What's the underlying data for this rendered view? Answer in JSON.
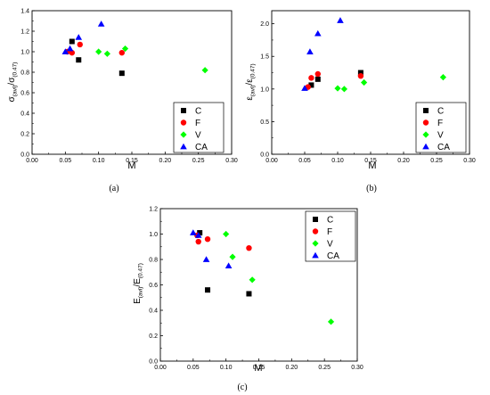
{
  "chart_data": [
    {
      "type": "scatter",
      "caption": "(a)",
      "xlabel": "M",
      "ylabel_main": "σ",
      "ylabel_sub1": "(avi)",
      "ylabel_mid": "/σ",
      "ylabel_sub2": "(0.47)",
      "xlim": [
        0,
        0.3
      ],
      "ylim": [
        0,
        1.4
      ],
      "xticks": [
        "0.00",
        "0.05",
        "0.10",
        "0.15",
        "0.20",
        "0.25",
        "0.30"
      ],
      "yticks": [
        "0.0",
        "0.2",
        "0.4",
        "0.6",
        "0.8",
        "1.0",
        "1.2",
        "1.4"
      ],
      "legend_position": "bottom-right",
      "series": [
        {
          "name": "C",
          "marker": "square",
          "color": "#000000",
          "x": [
            0.06,
            0.07,
            0.135
          ],
          "y": [
            1.1,
            0.92,
            0.79
          ]
        },
        {
          "name": "F",
          "marker": "circle",
          "color": "#ff0000",
          "x": [
            0.053,
            0.06,
            0.072,
            0.135
          ],
          "y": [
            1.0,
            0.99,
            1.07,
            0.99
          ]
        },
        {
          "name": "V",
          "marker": "diamond",
          "color": "#00ff00",
          "x": [
            0.1,
            0.113,
            0.14,
            0.26
          ],
          "y": [
            1.0,
            0.98,
            1.03,
            0.82
          ]
        },
        {
          "name": "CA",
          "marker": "triangle",
          "color": "#0000ff",
          "x": [
            0.05,
            0.057,
            0.07,
            0.104
          ],
          "y": [
            1.0,
            1.03,
            1.14,
            1.27
          ]
        }
      ]
    },
    {
      "type": "scatter",
      "caption": "(b)",
      "xlabel": "M",
      "ylabel_main": "ε",
      "ylabel_sub1": "(avi)",
      "ylabel_mid": "/ε",
      "ylabel_sub2": "(0.47)",
      "xlim": [
        0,
        0.3
      ],
      "ylim": [
        0,
        2.2
      ],
      "xticks": [
        "0.00",
        "0.05",
        "0.10",
        "0.15",
        "0.20",
        "0.25",
        "0.30"
      ],
      "yticks": [
        "0.0",
        "0.5",
        "1.0",
        "1.5",
        "2.0"
      ],
      "ytick_values": [
        0,
        0.5,
        1.0,
        1.5,
        2.0
      ],
      "legend_position": "bottom-right",
      "series": [
        {
          "name": "C",
          "marker": "square",
          "color": "#000000",
          "x": [
            0.06,
            0.07,
            0.135
          ],
          "y": [
            1.06,
            1.15,
            1.25
          ]
        },
        {
          "name": "F",
          "marker": "circle",
          "color": "#ff0000",
          "x": [
            0.055,
            0.06,
            0.07,
            0.135
          ],
          "y": [
            1.03,
            1.17,
            1.23,
            1.2
          ]
        },
        {
          "name": "V",
          "marker": "diamond",
          "color": "#00ff00",
          "x": [
            0.1,
            0.11,
            0.14,
            0.26
          ],
          "y": [
            1.01,
            1.0,
            1.1,
            1.18
          ]
        },
        {
          "name": "CA",
          "marker": "triangle",
          "color": "#0000ff",
          "x": [
            0.05,
            0.058,
            0.07,
            0.104
          ],
          "y": [
            1.01,
            1.57,
            1.85,
            2.05
          ]
        }
      ]
    },
    {
      "type": "scatter",
      "caption": "(c)",
      "xlabel": "M",
      "ylabel_main": "E",
      "ylabel_sub1": "(avi)",
      "ylabel_mid": "/E",
      "ylabel_sub2": "(0.47)",
      "xlim": [
        0,
        0.3
      ],
      "ylim": [
        0,
        1.2
      ],
      "xticks": [
        "0.00",
        "0.05",
        "0.10",
        "0.15",
        "0.20",
        "0.25",
        "0.30"
      ],
      "yticks": [
        "0.0",
        "0.2",
        "0.4",
        "0.6",
        "0.8",
        "1.0",
        "1.2"
      ],
      "legend_position": "top-right",
      "series": [
        {
          "name": "C",
          "marker": "square",
          "color": "#000000",
          "x": [
            0.06,
            0.072,
            0.135
          ],
          "y": [
            1.01,
            0.56,
            0.53
          ]
        },
        {
          "name": "F",
          "marker": "circle",
          "color": "#ff0000",
          "x": [
            0.056,
            0.058,
            0.072,
            0.135
          ],
          "y": [
            0.99,
            0.94,
            0.96,
            0.89
          ]
        },
        {
          "name": "V",
          "marker": "diamond",
          "color": "#00ff00",
          "x": [
            0.1,
            0.11,
            0.14,
            0.26
          ],
          "y": [
            1.0,
            0.82,
            0.64,
            0.31
          ]
        },
        {
          "name": "CA",
          "marker": "triangle",
          "color": "#0000ff",
          "x": [
            0.05,
            0.058,
            0.07,
            0.104
          ],
          "y": [
            1.01,
            0.99,
            0.8,
            0.75
          ]
        }
      ]
    }
  ]
}
